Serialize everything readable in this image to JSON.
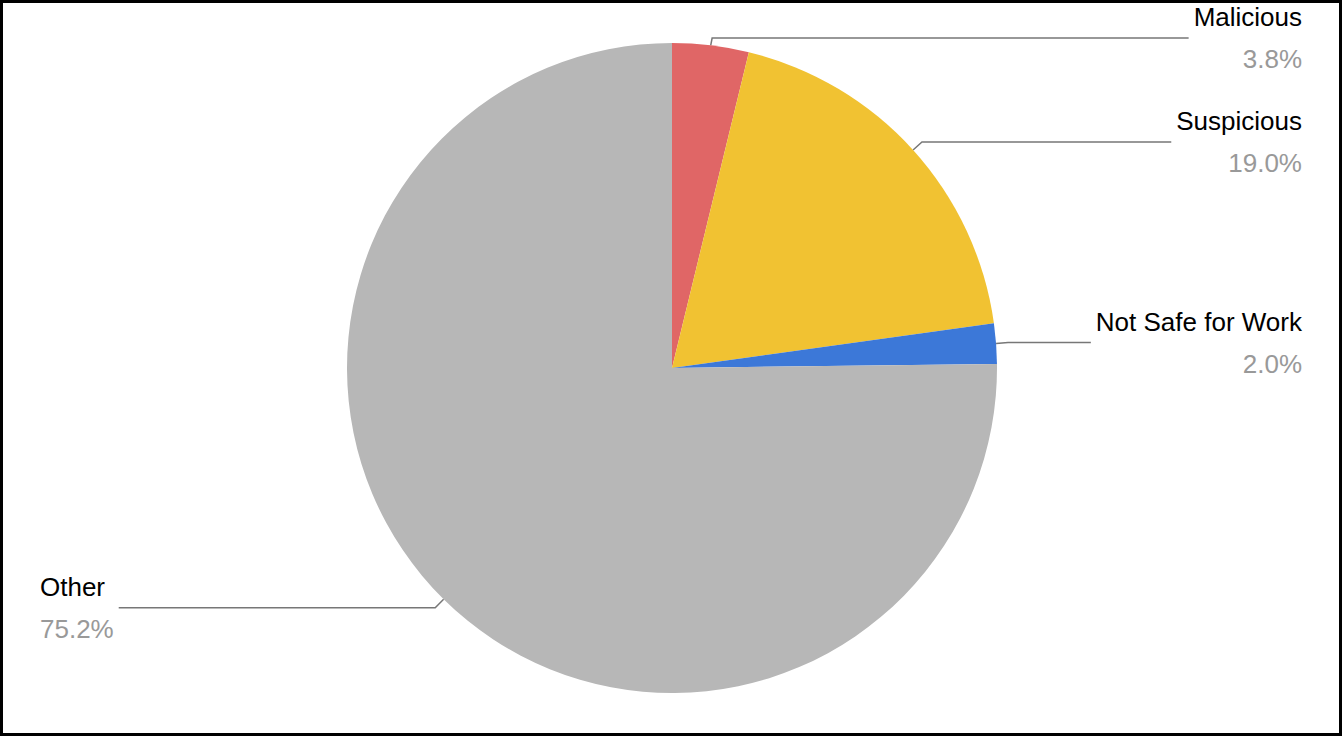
{
  "chart_data": {
    "type": "pie",
    "categories": [
      "Malicious",
      "Suspicious",
      "Not Safe for Work",
      "Other"
    ],
    "values": [
      3.8,
      19.0,
      2.0,
      75.2
    ],
    "value_labels": [
      "3.8%",
      "19.0%",
      "2.0%",
      "75.2%"
    ],
    "colors": [
      "#e06666",
      "#f1c232",
      "#3c78d8",
      "#b7b7b7"
    ],
    "data_labels": true
  }
}
